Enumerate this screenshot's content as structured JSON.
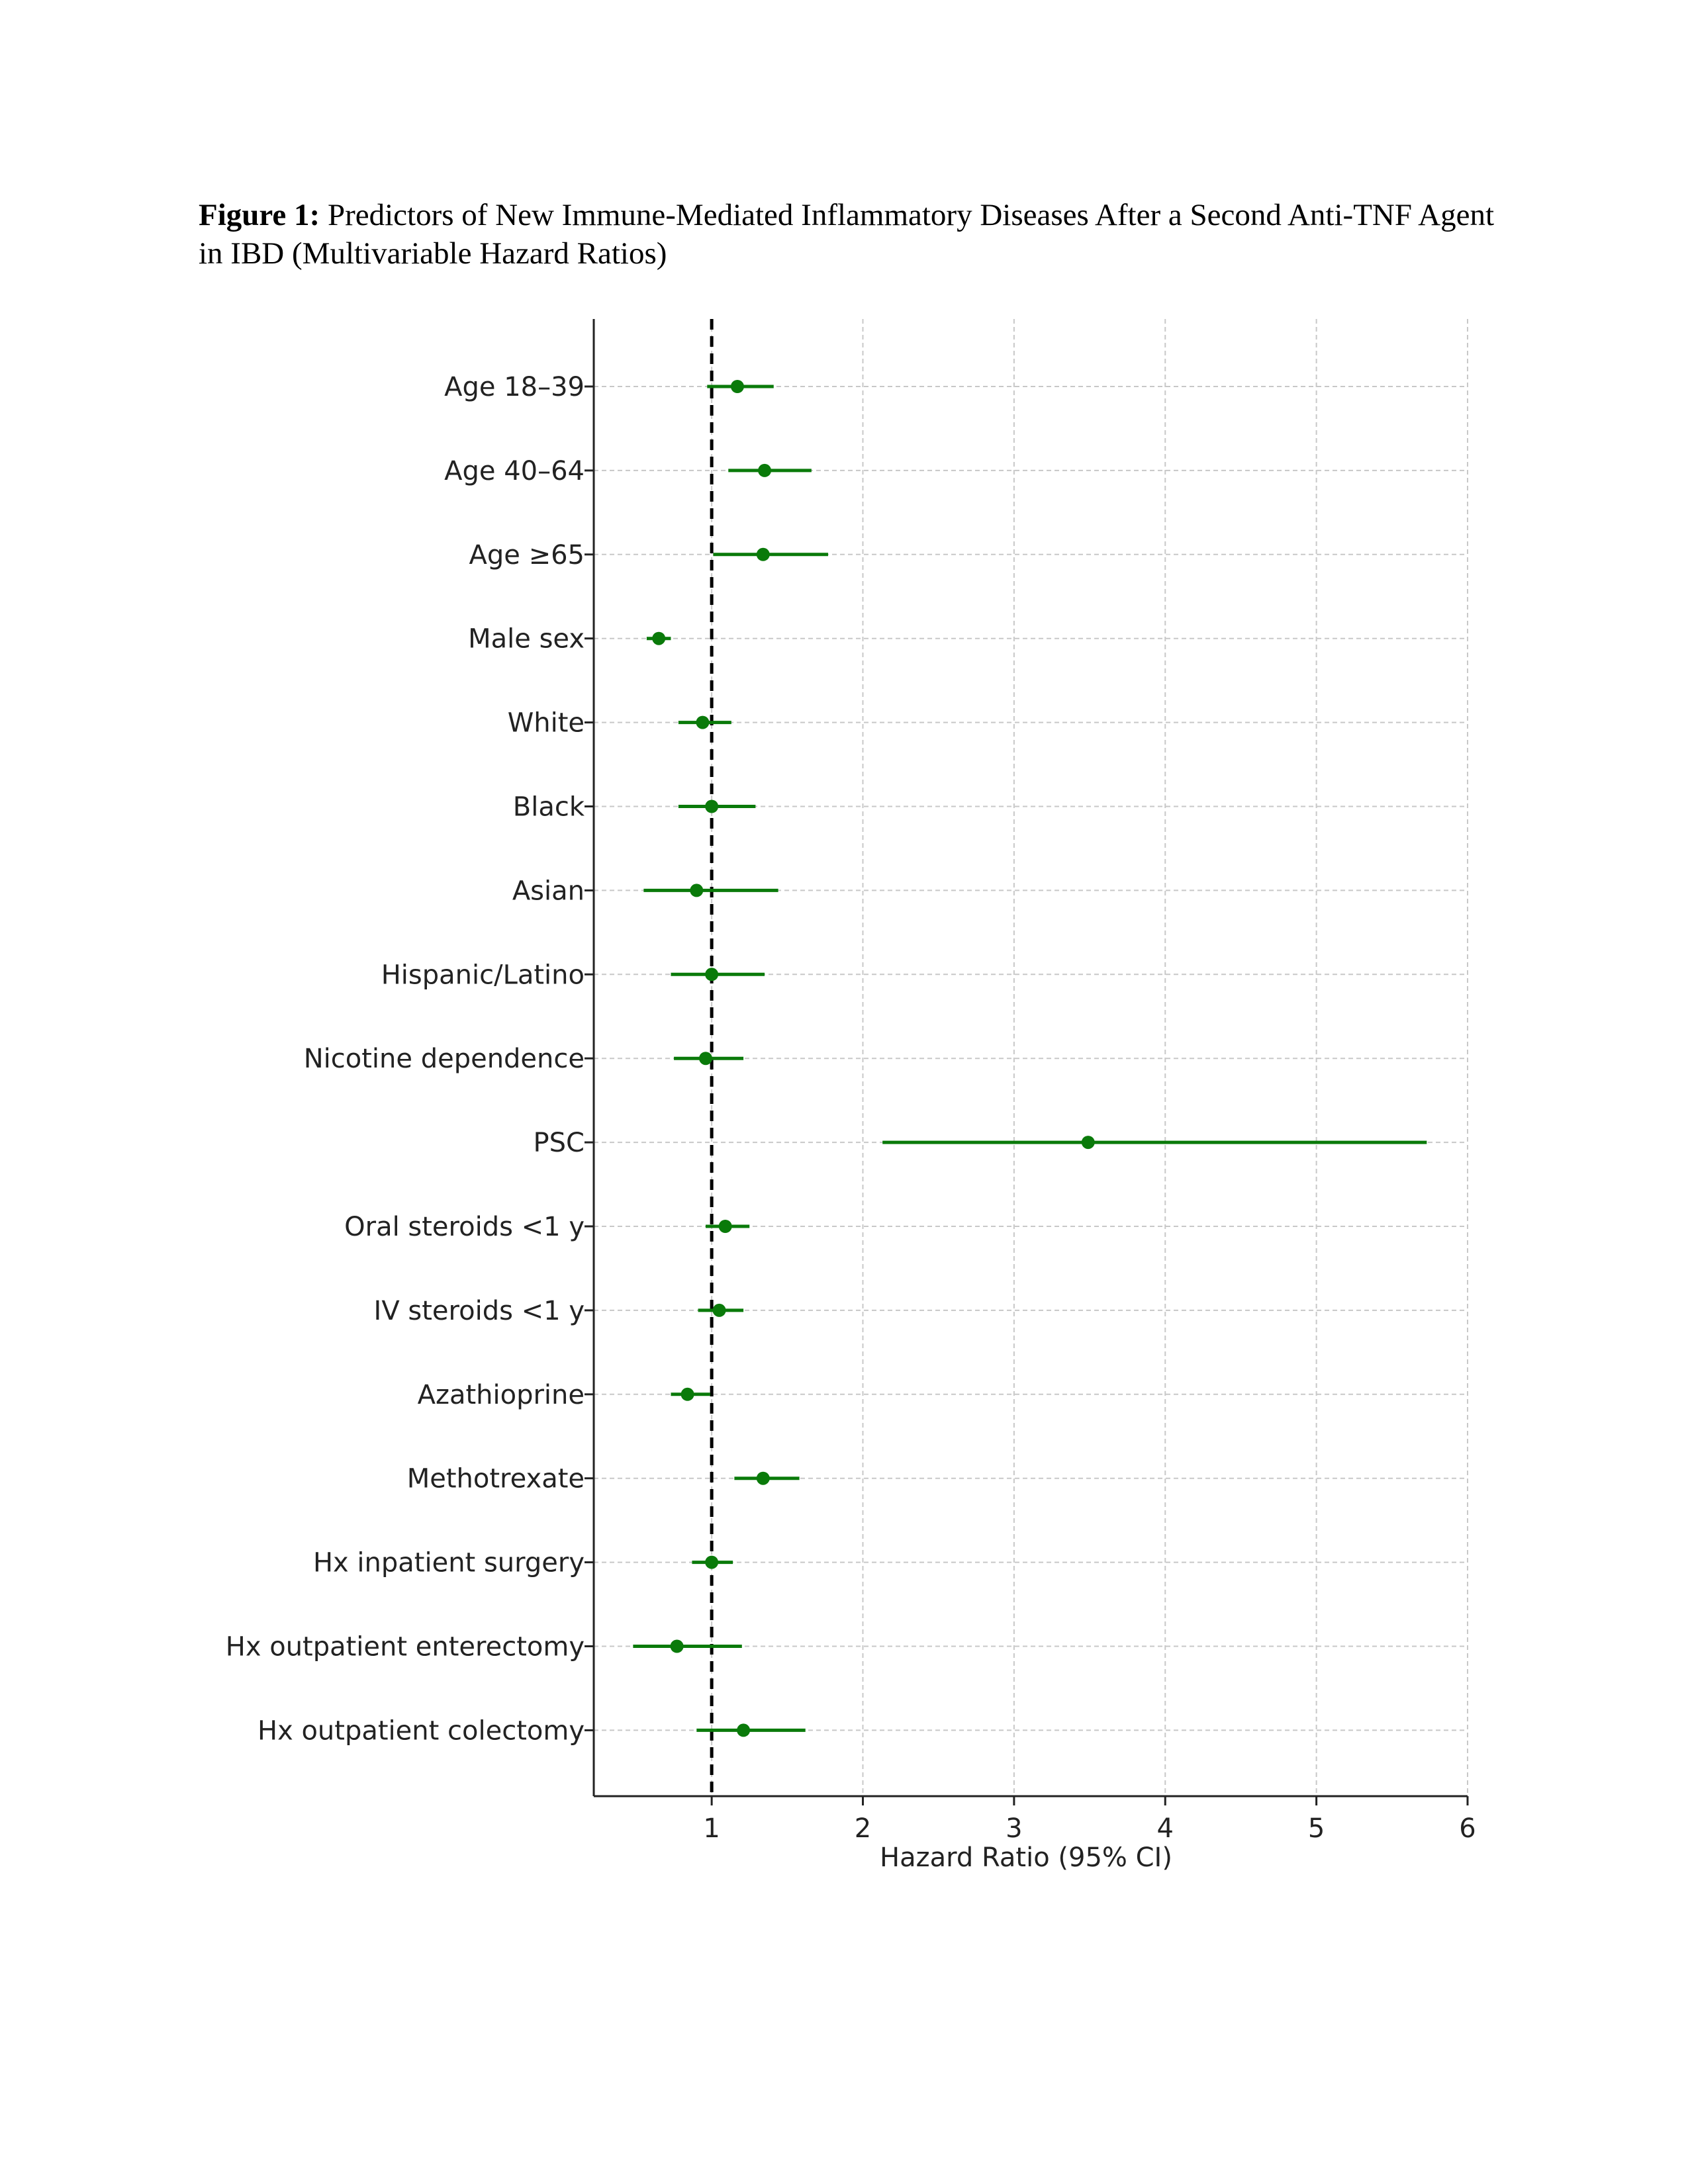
{
  "figure": {
    "label": "Figure 1:",
    "title": "Predictors of New Immune-Mediated Inflammatory Diseases After a Second Anti-TNF Agent in IBD (Multivariable Hazard Ratios)"
  },
  "chart_data": {
    "type": "forest",
    "xlabel": "Hazard Ratio (95% CI)",
    "ylabel": "",
    "xlim": [
      0.22,
      6.0
    ],
    "xticks": [
      1,
      2,
      3,
      4,
      5,
      6
    ],
    "tick_labels": [
      "1",
      "2",
      "3",
      "4",
      "5",
      "6"
    ],
    "reference_line": 1,
    "grid": true,
    "marker_color": "#0a7a0a",
    "reference_color": "#000000",
    "grid_color": "#c8c8c8",
    "rows": [
      {
        "label": "Age 18–39",
        "hr": 1.17,
        "lo": 0.97,
        "hi": 1.41
      },
      {
        "label": "Age 40–64",
        "hr": 1.35,
        "lo": 1.11,
        "hi": 1.66
      },
      {
        "label": "Age ≥65",
        "hr": 1.34,
        "lo": 1.01,
        "hi": 1.77
      },
      {
        "label": "Male sex",
        "hr": 0.65,
        "lo": 0.57,
        "hi": 0.73
      },
      {
        "label": "White",
        "hr": 0.94,
        "lo": 0.78,
        "hi": 1.13
      },
      {
        "label": "Black",
        "hr": 1.0,
        "lo": 0.78,
        "hi": 1.29
      },
      {
        "label": "Asian",
        "hr": 0.9,
        "lo": 0.55,
        "hi": 1.44
      },
      {
        "label": "Hispanic/Latino",
        "hr": 1.0,
        "lo": 0.73,
        "hi": 1.35
      },
      {
        "label": "Nicotine dependence",
        "hr": 0.96,
        "lo": 0.75,
        "hi": 1.21
      },
      {
        "label": "PSC",
        "hr": 3.49,
        "lo": 2.13,
        "hi": 5.73
      },
      {
        "label": "Oral steroids <1 y",
        "hr": 1.09,
        "lo": 0.96,
        "hi": 1.25
      },
      {
        "label": "IV steroids <1 y",
        "hr": 1.05,
        "lo": 0.91,
        "hi": 1.21
      },
      {
        "label": "Azathioprine",
        "hr": 0.84,
        "lo": 0.73,
        "hi": 0.99
      },
      {
        "label": "Methotrexate",
        "hr": 1.34,
        "lo": 1.15,
        "hi": 1.58
      },
      {
        "label": "Hx inpatient surgery",
        "hr": 1.0,
        "lo": 0.87,
        "hi": 1.14
      },
      {
        "label": "Hx outpatient enterectomy",
        "hr": 0.77,
        "lo": 0.48,
        "hi": 1.2
      },
      {
        "label": "Hx outpatient colectomy",
        "hr": 1.21,
        "lo": 0.9,
        "hi": 1.62
      }
    ]
  }
}
